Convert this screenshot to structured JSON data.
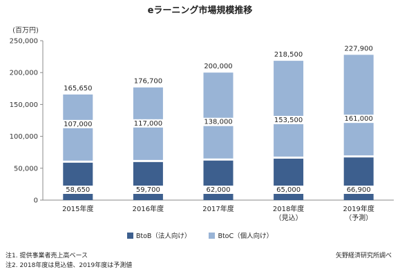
{
  "title": "eラーニング市場規模推移",
  "notes": [
    "注1. 提供事業者売上高ベース",
    "注2. 2018年度は見込値、2019年度は予測値"
  ],
  "source": "矢野経済研究所調べ",
  "chart_data": {
    "type": "bar",
    "stacked": true,
    "title": "eラーニング市場規模推移",
    "unit_label": "(百万円)",
    "ylim": [
      0,
      250000
    ],
    "y_ticks": [
      "0",
      "50,000",
      "100,000",
      "150,000",
      "200,000",
      "250,000"
    ],
    "categories": [
      "2015年度",
      "2016年度",
      "2017年度",
      "2018年度",
      "2019年度"
    ],
    "category_sublabels": [
      "",
      "",
      "",
      "（見込）",
      "（予測）"
    ],
    "series": [
      {
        "name": "BtoB（法人向け）",
        "color": "#3d5f8e",
        "values": [
          58650,
          59700,
          62000,
          65000,
          66900
        ],
        "labels": [
          "58,650",
          "59,700",
          "62,000",
          "65,000",
          "66,900"
        ]
      },
      {
        "name": "BtoC（個人向け）",
        "color": "#99b4d6",
        "values": [
          107000,
          117000,
          138000,
          153500,
          161000
        ],
        "labels": [
          "107,000",
          "117,000",
          "138,000",
          "153,500",
          "161,000"
        ]
      }
    ],
    "totals": [
      165650,
      176700,
      200000,
      218500,
      227900
    ],
    "total_labels": [
      "165,650",
      "176,700",
      "200,000",
      "218,500",
      "227,900"
    ],
    "grid": false,
    "legend_position": "bottom"
  }
}
